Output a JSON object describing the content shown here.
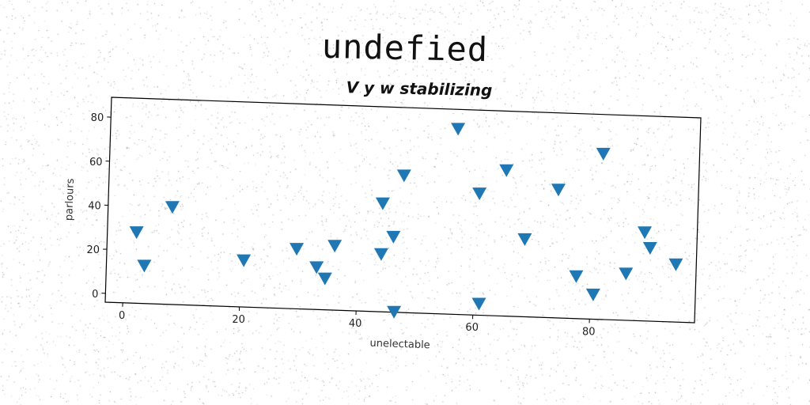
{
  "header": {
    "title": "undefied",
    "subtitle": "V y w stabilizing"
  },
  "chart_data": {
    "type": "scatter",
    "marker": "triangle-down",
    "color": "#1f77b4",
    "xlabel": "unelectable",
    "ylabel": "parlours",
    "xlim": [
      -3,
      98
    ],
    "ylim": [
      -4,
      89
    ],
    "xticks": [
      0,
      20,
      40,
      60,
      80
    ],
    "yticks": [
      0,
      20,
      40,
      60,
      80
    ],
    "points": [
      {
        "x": 2,
        "y": 28
      },
      {
        "x": 3.5,
        "y": 13
      },
      {
        "x": 8,
        "y": 40
      },
      {
        "x": 20.5,
        "y": 17
      },
      {
        "x": 29.5,
        "y": 23
      },
      {
        "x": 33,
        "y": 15
      },
      {
        "x": 34.5,
        "y": 10
      },
      {
        "x": 36,
        "y": 25
      },
      {
        "x": 44,
        "y": 45
      },
      {
        "x": 44,
        "y": 22
      },
      {
        "x": 46,
        "y": 30
      },
      {
        "x": 46.5,
        "y": -4
      },
      {
        "x": 47.5,
        "y": 58
      },
      {
        "x": 56.5,
        "y": 80
      },
      {
        "x": 60.5,
        "y": 51
      },
      {
        "x": 61,
        "y": 1
      },
      {
        "x": 65,
        "y": 62
      },
      {
        "x": 68.5,
        "y": 31
      },
      {
        "x": 74,
        "y": 54
      },
      {
        "x": 77.5,
        "y": 15
      },
      {
        "x": 80.5,
        "y": 7
      },
      {
        "x": 81.5,
        "y": 71
      },
      {
        "x": 86,
        "y": 17
      },
      {
        "x": 89,
        "y": 36
      },
      {
        "x": 90,
        "y": 29
      },
      {
        "x": 94.5,
        "y": 22
      }
    ]
  }
}
